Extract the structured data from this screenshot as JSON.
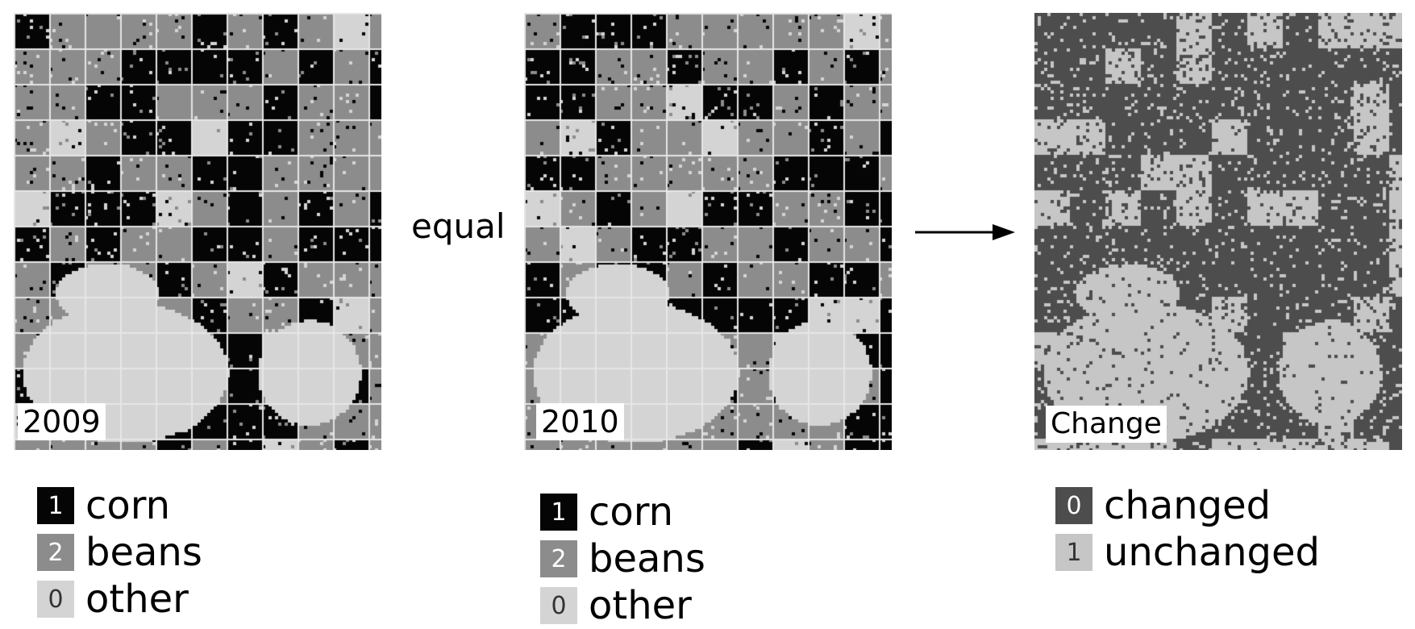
{
  "maps": {
    "year_2009": {
      "label": "2009"
    },
    "year_2010": {
      "label": "2010"
    },
    "change": {
      "label": "Change"
    }
  },
  "operator": "equal",
  "legends": {
    "crops_2009": [
      {
        "code": "1",
        "label": "corn",
        "color": "#050505"
      },
      {
        "code": "2",
        "label": "beans",
        "color": "#8c8c8c"
      },
      {
        "code": "0",
        "label": "other",
        "color": "#d4d4d4"
      }
    ],
    "crops_2010": [
      {
        "code": "1",
        "label": "corn",
        "color": "#050505"
      },
      {
        "code": "2",
        "label": "beans",
        "color": "#8c8c8c"
      },
      {
        "code": "0",
        "label": "other",
        "color": "#d4d4d4"
      }
    ],
    "change": [
      {
        "code": "0",
        "label": "changed",
        "color": "#4d4d4d"
      },
      {
        "code": "1",
        "label": "unchanged",
        "color": "#c6c6c6"
      }
    ]
  },
  "icons": {
    "arrow": "right-arrow-icon"
  }
}
